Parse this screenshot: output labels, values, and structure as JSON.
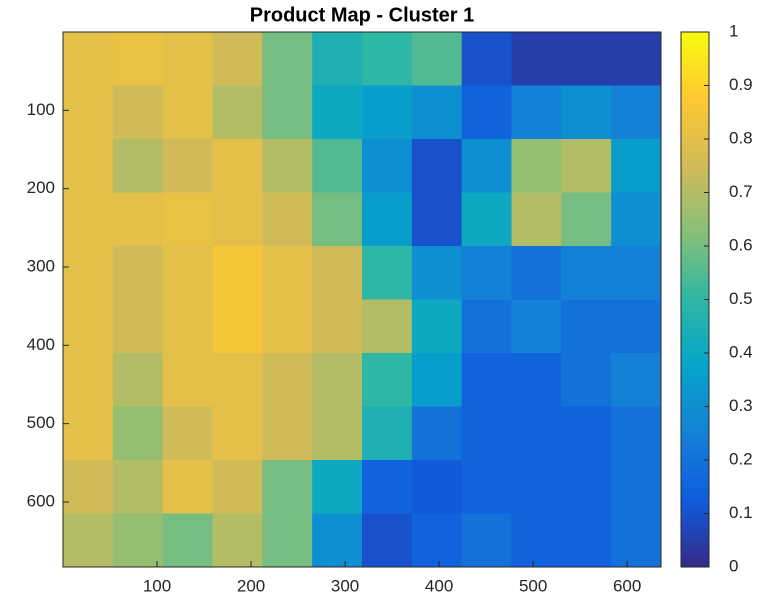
{
  "chart_data": {
    "type": "heatmap",
    "title": "Product Map - Cluster 1",
    "xlim": [
      0,
      636
    ],
    "xticks": [
      100,
      200,
      300,
      400,
      500,
      600
    ],
    "ylim": [
      0,
      683
    ],
    "yticks": [
      100,
      200,
      300,
      400,
      500,
      600
    ],
    "y_reversed": true,
    "z": [
      [
        0.8,
        0.82,
        0.8,
        0.75,
        0.6,
        0.45,
        0.5,
        0.55,
        0.1,
        0.05,
        0.05,
        0.05
      ],
      [
        0.8,
        0.75,
        0.8,
        0.7,
        0.6,
        0.4,
        0.35,
        0.3,
        0.15,
        0.25,
        0.3,
        0.25
      ],
      [
        0.8,
        0.7,
        0.75,
        0.8,
        0.7,
        0.55,
        0.3,
        0.1,
        0.3,
        0.65,
        0.7,
        0.35
      ],
      [
        0.8,
        0.8,
        0.82,
        0.8,
        0.75,
        0.6,
        0.35,
        0.1,
        0.4,
        0.7,
        0.6,
        0.3
      ],
      [
        0.8,
        0.75,
        0.8,
        0.85,
        0.8,
        0.75,
        0.5,
        0.3,
        0.25,
        0.2,
        0.25,
        0.25
      ],
      [
        0.8,
        0.75,
        0.8,
        0.85,
        0.8,
        0.75,
        0.7,
        0.4,
        0.2,
        0.25,
        0.2,
        0.2
      ],
      [
        0.8,
        0.7,
        0.8,
        0.8,
        0.75,
        0.7,
        0.5,
        0.35,
        0.15,
        0.15,
        0.2,
        0.25
      ],
      [
        0.8,
        0.65,
        0.75,
        0.8,
        0.75,
        0.7,
        0.45,
        0.2,
        0.15,
        0.15,
        0.15,
        0.2
      ],
      [
        0.75,
        0.7,
        0.8,
        0.75,
        0.6,
        0.4,
        0.15,
        0.12,
        0.15,
        0.15,
        0.15,
        0.2
      ],
      [
        0.7,
        0.65,
        0.6,
        0.7,
        0.6,
        0.3,
        0.1,
        0.15,
        0.2,
        0.15,
        0.15,
        0.2
      ]
    ],
    "clim": [
      0,
      1
    ],
    "cticks": [
      0,
      0.1,
      0.2,
      0.3,
      0.4,
      0.5,
      0.6,
      0.7,
      0.8,
      0.9,
      1
    ],
    "colormap": [
      "#352a87",
      "#0f5cdd",
      "#1481d6",
      "#06a4ca",
      "#2eb7a4",
      "#87bf77",
      "#d1bb59",
      "#fec832",
      "#f9fb0e"
    ]
  }
}
